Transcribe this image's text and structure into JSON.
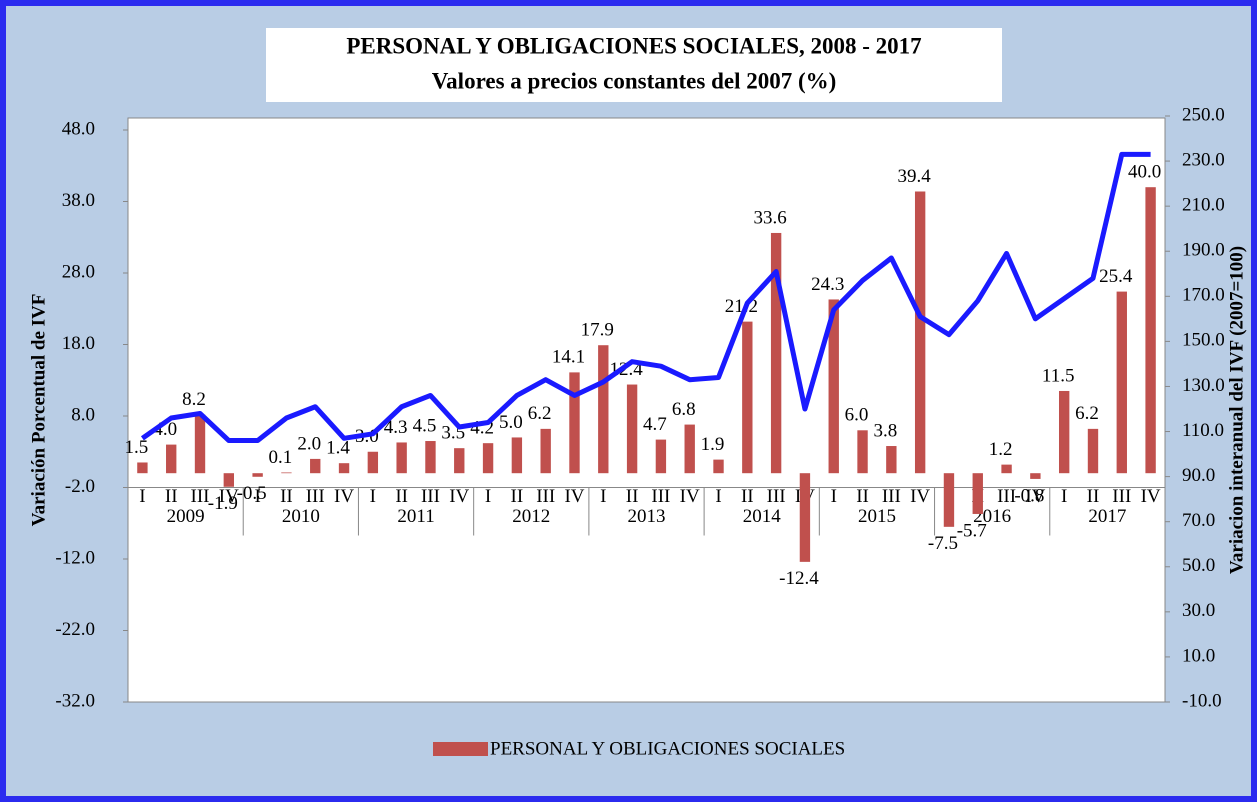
{
  "chart_data": {
    "type": "bar",
    "title": "PERSONAL Y OBLIGACIONES SOCIALES, 2008 - 2017",
    "subtitle": "Valores a precios constantes del 2007 (%)",
    "y_label": "Variación Porcentual de IVF",
    "y2_label": "Variacion interanual del IVF (2007=100)",
    "categories": [
      "I",
      "II",
      "III",
      "IV",
      "I",
      "II",
      "III",
      "IV",
      "I",
      "II",
      "III",
      "IV",
      "I",
      "II",
      "III",
      "IV",
      "I",
      "II",
      "III",
      "IV",
      "I",
      "II",
      "III",
      "IV",
      "I",
      "II",
      "III",
      "IV",
      "I",
      "II",
      "III",
      "IV",
      "I",
      "II",
      "III",
      "IV"
    ],
    "years": [
      "2009",
      "2010",
      "2011",
      "2012",
      "2013",
      "2014",
      "2015",
      "2016",
      "2017"
    ],
    "series": [
      {
        "name": "PERSONAL Y OBLIGACIONES SOCIALES",
        "type": "bar",
        "color": "#c0504d",
        "values": [
          1.5,
          4.0,
          8.2,
          -1.9,
          -0.5,
          0.1,
          2.0,
          1.4,
          3.0,
          4.3,
          4.5,
          3.5,
          4.2,
          5.0,
          6.2,
          14.1,
          17.9,
          12.4,
          4.7,
          6.8,
          1.9,
          21.2,
          33.6,
          -12.4,
          24.3,
          6.0,
          3.8,
          39.4,
          -7.5,
          -5.7,
          1.2,
          -0.8,
          11.5,
          6.2,
          25.4,
          40.0
        ],
        "value_labels": [
          "1.5",
          "4.0",
          "8.2",
          "-1.9",
          "-0.5",
          "0.1",
          "2.0",
          "1.4",
          "3.0",
          "4.3",
          "4.5",
          "3.5",
          "4.2",
          "5.0",
          "6.2",
          "14.1",
          "17.9",
          "12.4",
          "4.7",
          "6.8",
          "1.9",
          "21.2",
          "33.6",
          "-12.4",
          "24.3",
          "6.0",
          "3.8",
          "39.4",
          "-7.5",
          "-5.7",
          "1.2",
          "-0.8",
          "11.5",
          "6.2",
          "25.4",
          "40.0"
        ]
      },
      {
        "type": "line",
        "axis": "y2",
        "color": "#1a1aff",
        "values": [
          107,
          116,
          118,
          106,
          106,
          116,
          121,
          107,
          109,
          121,
          126,
          112,
          114,
          126,
          133,
          126,
          132,
          141,
          139,
          133,
          134,
          167,
          181,
          120,
          164,
          177,
          187,
          161,
          153,
          168,
          189,
          160,
          169,
          178,
          233,
          233
        ]
      }
    ],
    "ylim": [
      -32,
      48
    ],
    "yticks": [
      {
        "value": -32,
        "label": "-32.0"
      },
      {
        "value": -22,
        "label": "-22.0"
      },
      {
        "value": -12,
        "label": "-12.0"
      },
      {
        "value": -2,
        "label": "-2.0"
      },
      {
        "value": 8,
        "label": "8.0"
      },
      {
        "value": 18,
        "label": "18.0"
      },
      {
        "value": 28,
        "label": "28.0"
      },
      {
        "value": 38,
        "label": "38.0"
      },
      {
        "value": 48,
        "label": "48.0"
      }
    ],
    "y2lim": [
      -10,
      250
    ],
    "y2ticks": [
      {
        "value": -10,
        "label": "-10.0"
      },
      {
        "value": 10,
        "label": "10.0"
      },
      {
        "value": 30,
        "label": "30.0"
      },
      {
        "value": 50,
        "label": "50.0"
      },
      {
        "value": 70,
        "label": "70.0"
      },
      {
        "value": 90,
        "label": "90.0"
      },
      {
        "value": 110,
        "label": "110.0"
      },
      {
        "value": 130,
        "label": "130.0"
      },
      {
        "value": 150,
        "label": "150.0"
      },
      {
        "value": 170,
        "label": "170.0"
      },
      {
        "value": 190,
        "label": "190.0"
      },
      {
        "value": 210,
        "label": "210.0"
      },
      {
        "value": 230,
        "label": "230.0"
      },
      {
        "value": 250,
        "label": "250.0"
      }
    ],
    "grid": false,
    "legend": "bottom"
  }
}
